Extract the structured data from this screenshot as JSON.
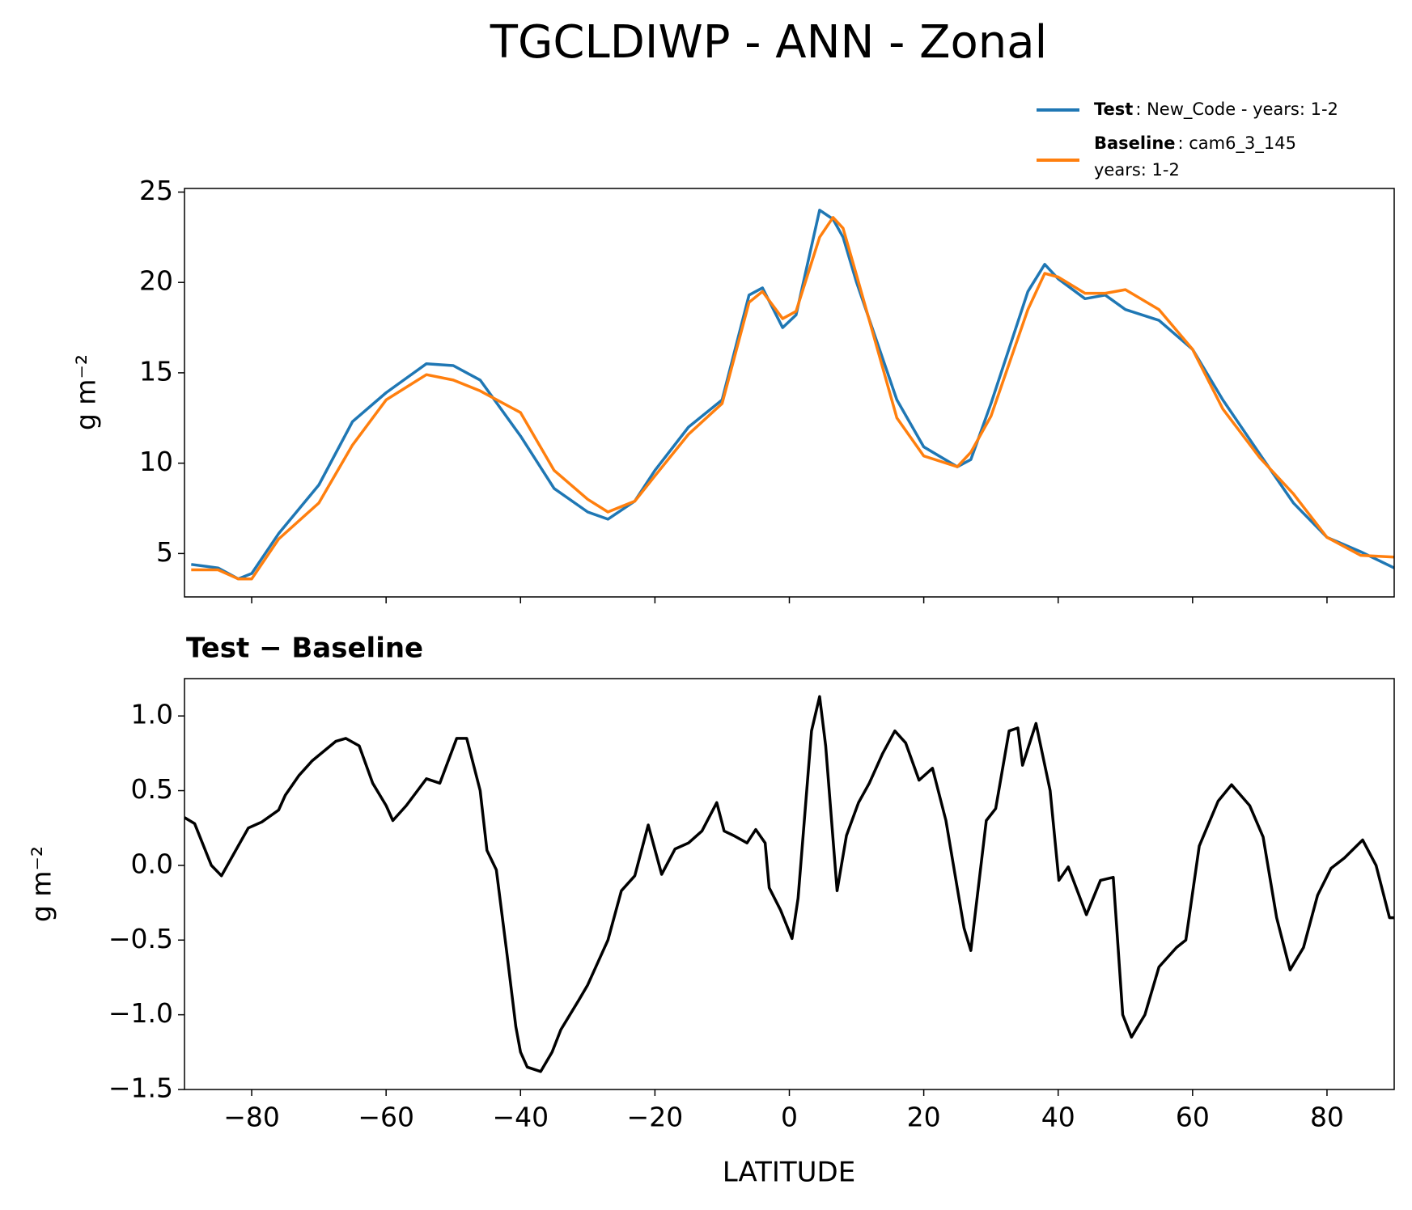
{
  "chart_data": [
    {
      "type": "line",
      "title": "TGCLDIWP - ANN - Zonal",
      "ylabel": "g m⁻²",
      "x": [
        -89,
        -85,
        -82,
        -80,
        -76,
        -70,
        -65,
        -60,
        -54,
        -50,
        -46,
        -40,
        -35,
        -30,
        -27,
        -23,
        -20,
        -15,
        -10,
        -6,
        -4,
        -1,
        1,
        4.5,
        6.5,
        8,
        10,
        16,
        20,
        25,
        27,
        30,
        35.5,
        38,
        40,
        44,
        47,
        50,
        55,
        60,
        64.5,
        70,
        75,
        80,
        85,
        90
      ],
      "series": [
        {
          "name": "Test",
          "description": [
            ": New_Code - years: 1-2"
          ],
          "color": "#1f77b4",
          "values": [
            4.4,
            4.2,
            3.6,
            3.9,
            6.1,
            8.8,
            12.3,
            13.9,
            15.5,
            15.4,
            14.6,
            11.5,
            8.6,
            7.3,
            6.9,
            7.9,
            9.6,
            12.0,
            13.5,
            19.3,
            19.7,
            17.5,
            18.2,
            24.0,
            23.5,
            22.5,
            20.0,
            13.5,
            10.9,
            9.8,
            10.2,
            13.3,
            19.5,
            21.0,
            20.2,
            19.1,
            19.3,
            18.5,
            17.9,
            16.3,
            13.5,
            10.5,
            7.8,
            5.9,
            5.1,
            4.2
          ]
        },
        {
          "name": "Baseline",
          "description": [
            ": cam6_3_145",
            "years: 1-2"
          ],
          "color": "#ff7f0e",
          "values": [
            4.1,
            4.1,
            3.6,
            3.6,
            5.8,
            7.8,
            11.0,
            13.5,
            14.9,
            14.6,
            14.0,
            12.8,
            9.6,
            8.0,
            7.3,
            7.9,
            9.3,
            11.6,
            13.3,
            18.9,
            19.5,
            18.0,
            18.4,
            22.5,
            23.6,
            23.0,
            20.4,
            12.5,
            10.4,
            9.8,
            10.6,
            12.6,
            18.5,
            20.5,
            20.3,
            19.4,
            19.4,
            19.6,
            18.5,
            16.3,
            13.0,
            10.3,
            8.3,
            5.9,
            4.9,
            4.8
          ]
        }
      ],
      "xlim": [
        -90,
        90
      ],
      "xticks": [
        -80,
        -60,
        -40,
        -20,
        0,
        20,
        40,
        60,
        80
      ],
      "xticklabels": false,
      "ylim": [
        2.6,
        25.2
      ],
      "yticks": [
        5,
        10,
        15,
        20,
        25
      ],
      "legend": "upper right",
      "grid": false
    },
    {
      "type": "line",
      "title": "Test − Baseline",
      "ylabel": "g m⁻²",
      "xlabel": "LATITUDE",
      "x": [
        -90,
        -88.5,
        -86,
        -84.5,
        -82,
        -80.5,
        -78.5,
        -76,
        -75,
        -73,
        -71,
        -67.5,
        -66,
        -64,
        -62,
        -60,
        -59,
        -57,
        -54,
        -52,
        -49.5,
        -48,
        -46,
        -45,
        -43.6,
        -42,
        -40.7,
        -40,
        -39,
        -37,
        -35.3,
        -34,
        -31.3,
        -30,
        -27,
        -25,
        -23,
        -21,
        -19,
        -17,
        -15,
        -13,
        -10.8,
        -9.7,
        -8.3,
        -6.3,
        -5,
        -3.6,
        -3,
        -1.3,
        0.4,
        1.3,
        3.3,
        4.5,
        5.4,
        7.1,
        8.5,
        10.3,
        11.9,
        13.9,
        15.7,
        17.3,
        19.3,
        21.3,
        23.3,
        26,
        27,
        29.3,
        30.7,
        32.7,
        34,
        34.7,
        36.7,
        38.8,
        40.1,
        41.5,
        44.2,
        46.3,
        48.2,
        49.6,
        50.9,
        52.9,
        55,
        57.6,
        59,
        61,
        63.8,
        65.8,
        68.5,
        70.5,
        72.5,
        74.5,
        76.5,
        78.6,
        80.6,
        82.6,
        85.3,
        87.3,
        89.3,
        90
      ],
      "series": [
        {
          "name": "Test − Baseline",
          "color": "#000000",
          "values": [
            0.32,
            0.28,
            0.0,
            -0.07,
            0.13,
            0.25,
            0.29,
            0.37,
            0.47,
            0.6,
            0.7,
            0.83,
            0.85,
            0.8,
            0.55,
            0.4,
            0.3,
            0.4,
            0.58,
            0.55,
            0.85,
            0.85,
            0.5,
            0.1,
            -0.03,
            -0.6,
            -1.08,
            -1.25,
            -1.35,
            -1.38,
            -1.25,
            -1.1,
            -0.9,
            -0.8,
            -0.5,
            -0.17,
            -0.07,
            0.27,
            -0.06,
            0.11,
            0.15,
            0.23,
            0.42,
            0.23,
            0.2,
            0.15,
            0.24,
            0.15,
            -0.15,
            -0.3,
            -0.49,
            -0.22,
            0.9,
            1.13,
            0.8,
            -0.17,
            0.2,
            0.42,
            0.55,
            0.75,
            0.9,
            0.82,
            0.57,
            0.65,
            0.3,
            -0.42,
            -0.57,
            0.3,
            0.38,
            0.9,
            0.92,
            0.67,
            0.95,
            0.5,
            -0.1,
            -0.01,
            -0.33,
            -0.1,
            -0.08,
            -1.0,
            -1.15,
            -1.0,
            -0.68,
            -0.55,
            -0.5,
            0.13,
            0.43,
            0.54,
            0.4,
            0.19,
            -0.35,
            -0.7,
            -0.55,
            -0.2,
            -0.02,
            0.05,
            0.17,
            0.0,
            -0.35,
            -0.35
          ]
        }
      ],
      "xlim": [
        -90,
        90
      ],
      "xticks": [
        {
          "value": -80,
          "label": "−80"
        },
        {
          "value": -60,
          "label": "−60"
        },
        {
          "value": -40,
          "label": "−40"
        },
        {
          "value": -20,
          "label": "−20"
        },
        0,
        20,
        40,
        60,
        80
      ],
      "ylim": [
        -1.5,
        1.25
      ],
      "yticks": [
        {
          "value": -1.5,
          "label": "−1.5"
        },
        {
          "value": -1.0,
          "label": "−1.0"
        },
        {
          "value": -0.5,
          "label": "−0.5"
        },
        {
          "value": 0.0,
          "label": "0.0"
        },
        {
          "value": 0.5,
          "label": "0.5"
        },
        {
          "value": 1.0,
          "label": "1.0"
        }
      ],
      "grid": false
    }
  ]
}
